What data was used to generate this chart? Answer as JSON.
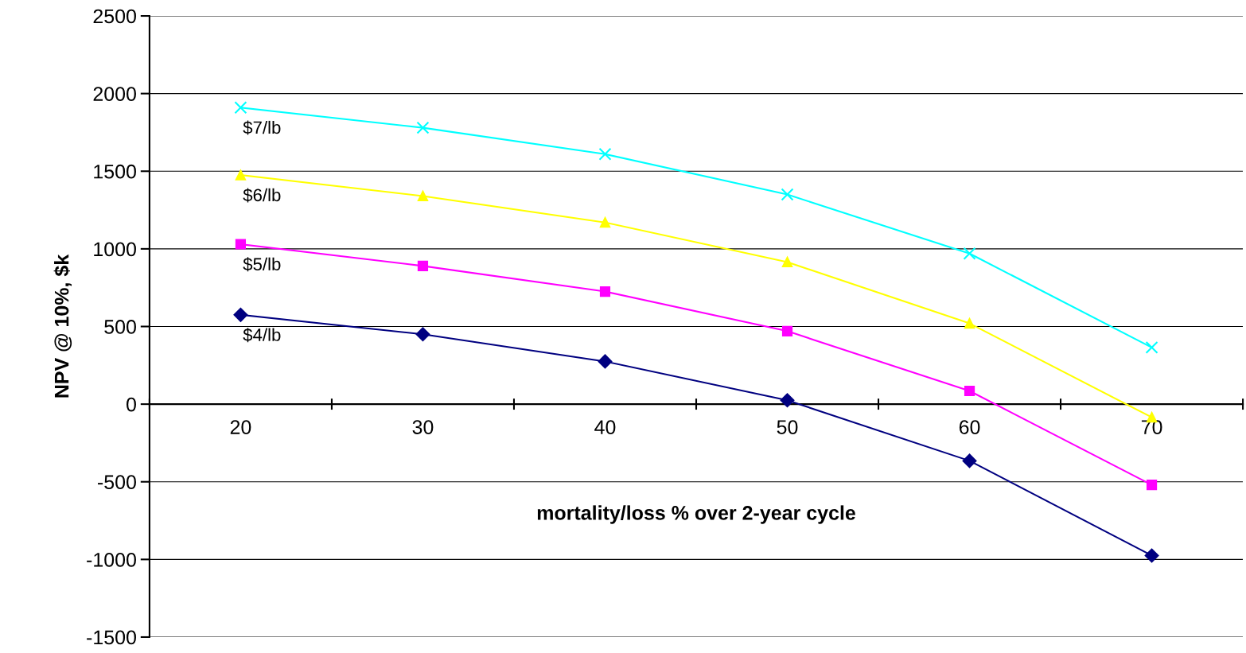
{
  "chart_data": {
    "type": "line",
    "xlabel": "mortality/loss % over 2-year cycle",
    "ylabel": "NPV @ 10%, $k",
    "categories": [
      "20",
      "30",
      "40",
      "50",
      "60",
      "70"
    ],
    "ylim": [
      -1500,
      2500
    ],
    "yticks": [
      -1500,
      -1000,
      -500,
      0,
      500,
      1000,
      1500,
      2000,
      2500
    ],
    "grid": "y",
    "legend": false,
    "series": [
      {
        "name": "$4/lb",
        "color": "#000080",
        "marker": "diamond",
        "values": [
          575,
          450,
          275,
          25,
          -365,
          -975
        ]
      },
      {
        "name": "$5/lb",
        "color": "#ff00ff",
        "marker": "square",
        "values": [
          1030,
          890,
          725,
          470,
          85,
          -520
        ]
      },
      {
        "name": "$6/lb",
        "color": "#ffff00",
        "marker": "triangle",
        "values": [
          1475,
          1340,
          1170,
          915,
          520,
          -85
        ]
      },
      {
        "name": "$7/lb",
        "color": "#00ffff",
        "marker": "cross",
        "values": [
          1910,
          1780,
          1610,
          1350,
          970,
          365
        ]
      }
    ]
  }
}
